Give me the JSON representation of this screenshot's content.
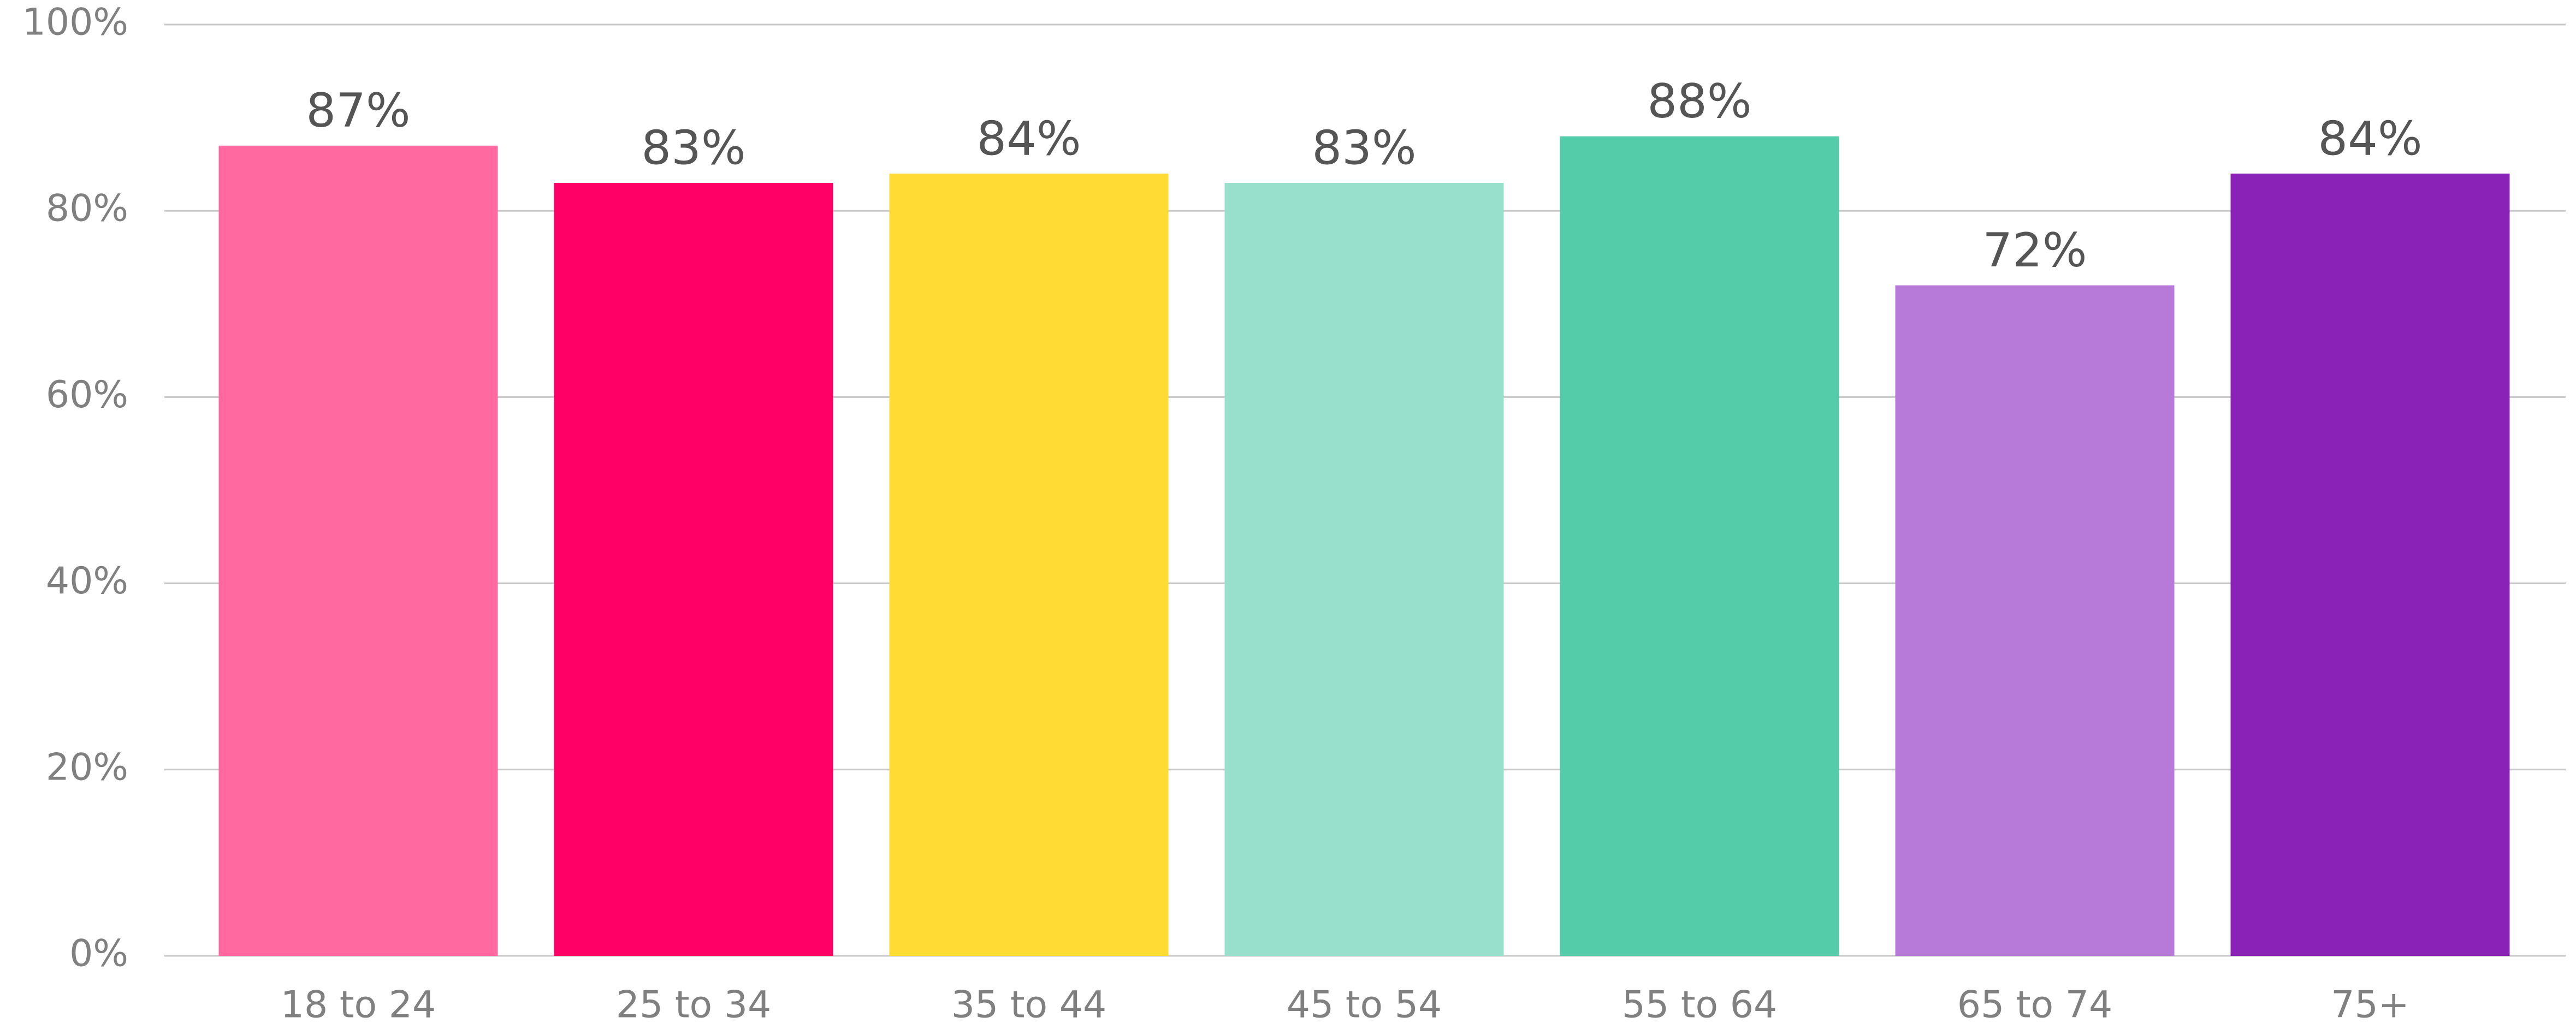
{
  "chart_data": {
    "type": "bar",
    "categories": [
      "18 to 24",
      "25 to 34",
      "35 to 44",
      "45 to 54",
      "55 to 64",
      "65 to 74",
      "75+"
    ],
    "values": [
      87,
      83,
      84,
      83,
      88,
      72,
      84
    ],
    "value_labels": [
      "87%",
      "83%",
      "84%",
      "83%",
      "88%",
      "72%",
      "84%"
    ],
    "colors": [
      "#ff69a0",
      "#ff0066",
      "#ffdb33",
      "#99e0cc",
      "#55cca9",
      "#b87ad8",
      "#8a22b8"
    ],
    "ylim": [
      0,
      100
    ],
    "yticks": [
      {
        "value": 0,
        "label": "0%"
      },
      {
        "value": 20,
        "label": "20%"
      },
      {
        "value": 40,
        "label": "40%"
      },
      {
        "value": 60,
        "label": "60%"
      },
      {
        "value": 80,
        "label": "80%"
      },
      {
        "value": 100,
        "label": "100%"
      }
    ],
    "grid": true
  }
}
